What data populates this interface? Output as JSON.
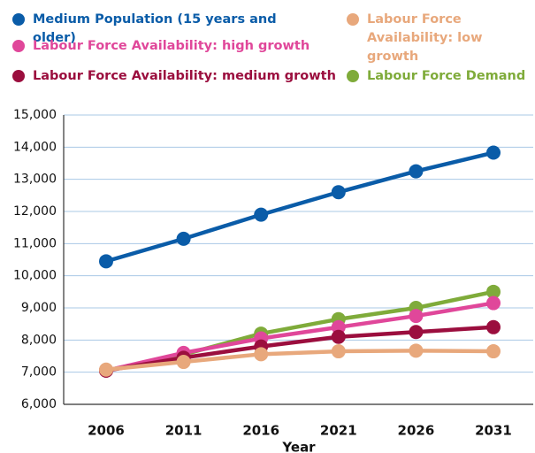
{
  "chart_data": {
    "type": "line",
    "x_label": "Year",
    "categories": [
      "2006",
      "2011",
      "2016",
      "2021",
      "2026",
      "2031"
    ],
    "series": [
      {
        "name": "Medium Population (15 years and older)",
        "color": "#0a5ca8",
        "values": [
          10450,
          11150,
          11900,
          12600,
          13250,
          13830
        ]
      },
      {
        "name": "Labour Force Availability: low growth",
        "color": "#e8a87c",
        "values": [
          7080,
          7320,
          7560,
          7650,
          7670,
          7650
        ]
      },
      {
        "name": "Labour Force Availability: high growth",
        "color": "#e0479a",
        "values": [
          7050,
          7600,
          8050,
          8400,
          8750,
          9150
        ]
      },
      {
        "name": "Labour Force Availability: medium growth",
        "color": "#9b0e3e",
        "values": [
          7050,
          7450,
          7800,
          8100,
          8250,
          8400
        ]
      },
      {
        "name": "Labour Force Demand",
        "color": "#7fab3a",
        "values": [
          7050,
          7550,
          8200,
          8650,
          9000,
          9500
        ]
      }
    ],
    "ylim": [
      6000,
      15000
    ],
    "yticks": [
      {
        "value": 6000,
        "label": "6,000"
      },
      {
        "value": 7000,
        "label": "7,000"
      },
      {
        "value": 8000,
        "label": "8,000"
      },
      {
        "value": 9000,
        "label": "9,000"
      },
      {
        "value": 10000,
        "label": "10,000"
      },
      {
        "value": 11000,
        "label": "11,000"
      },
      {
        "value": 12000,
        "label": "12,000"
      },
      {
        "value": 13000,
        "label": "13,000"
      },
      {
        "value": 14000,
        "label": "14,000"
      },
      {
        "value": 15000,
        "label": "15,000"
      }
    ],
    "grid": true,
    "legend": "top"
  }
}
